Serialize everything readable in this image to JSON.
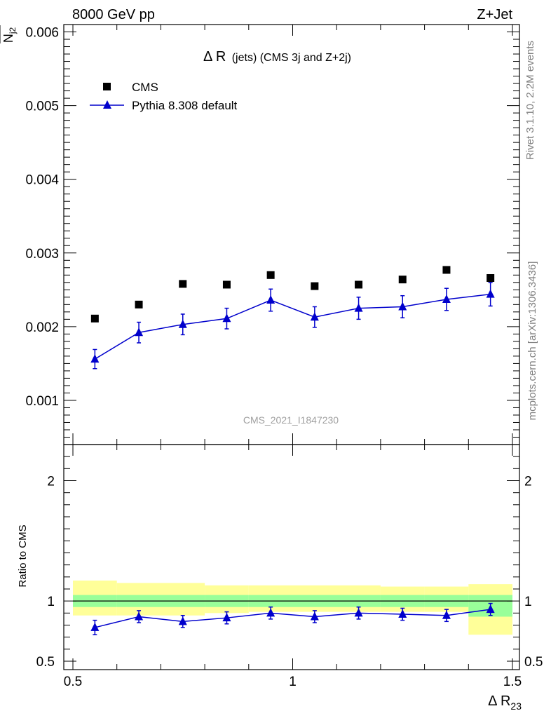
{
  "header": {
    "energy": "8000 GeV pp",
    "process": "Z+Jet",
    "title_main": "Δ R",
    "title_rest": "(jets) (CMS 3j and Z+2j)",
    "watermark": "CMS_2021_I1847230",
    "side_rivet": "Rivet 3.1.10,  2.2M events",
    "side_mcplots": "mcplots.cern.ch [arXiv:1306.3436]"
  },
  "labels": {
    "ylabel_top_num": "N",
    "ylabel_top_num_sub": "j3",
    "ylabel_top_den": "N",
    "ylabel_top_den_sub": "j2",
    "ylabel_ratio": "Ratio to CMS",
    "xlabel": "Δ R",
    "xlabel_sub": "23"
  },
  "legend": {
    "data_label": "CMS",
    "mc_label": "Pythia 8.308 default"
  },
  "colors": {
    "data": "#000000",
    "mc": "#0000cc",
    "band_inner": "#99ff99",
    "band_outer": "#ffff99"
  },
  "chart_data": [
    {
      "type": "scatter",
      "panel": "main",
      "xlim": [
        0.5,
        1.5
      ],
      "ylim": [
        0.0004,
        0.0061
      ],
      "yticks": [
        0.001,
        0.002,
        0.003,
        0.004,
        0.005,
        0.006
      ],
      "ytick_labels": [
        "0.001",
        "0.002",
        "0.003",
        "0.004",
        "0.005",
        "0.006"
      ],
      "x": [
        0.55,
        0.65,
        0.75,
        0.85,
        0.95,
        1.05,
        1.15,
        1.25,
        1.35,
        1.45
      ],
      "series": [
        {
          "name": "CMS",
          "values": [
            0.00211,
            0.0023,
            0.00258,
            0.00257,
            0.0027,
            0.00255,
            0.00257,
            0.00264,
            0.00277,
            0.00266
          ]
        },
        {
          "name": "Pythia 8.308 default",
          "values": [
            0.00156,
            0.00192,
            0.00203,
            0.00211,
            0.00236,
            0.00213,
            0.00225,
            0.00227,
            0.00237,
            0.00244
          ],
          "errors": [
            0.00013,
            0.00014,
            0.00014,
            0.00014,
            0.00015,
            0.00014,
            0.00015,
            0.00015,
            0.00015,
            0.00016
          ]
        }
      ]
    },
    {
      "type": "line",
      "panel": "ratio",
      "xlim": [
        0.5,
        1.5
      ],
      "ylim": [
        0.43,
        2.3
      ],
      "yticks": [
        0.5,
        1,
        2
      ],
      "ytick_labels": [
        "0.5",
        "1",
        "2"
      ],
      "xticks": [
        0.5,
        1,
        1.5
      ],
      "xtick_labels": [
        "0.5",
        "1",
        "1.5"
      ],
      "x": [
        0.55,
        0.65,
        0.75,
        0.85,
        0.95,
        1.05,
        1.15,
        1.25,
        1.35,
        1.45
      ],
      "series": [
        {
          "name": "Pythia 8.308 default",
          "values": [
            0.78,
            0.87,
            0.83,
            0.86,
            0.9,
            0.87,
            0.9,
            0.89,
            0.88,
            0.93
          ],
          "errors": [
            0.06,
            0.05,
            0.05,
            0.05,
            0.05,
            0.05,
            0.05,
            0.05,
            0.05,
            0.05
          ]
        }
      ],
      "bands": [
        {
          "x0": 0.5,
          "x1": 0.6,
          "inner": [
            0.95,
            1.05
          ],
          "outer": [
            0.88,
            1.17
          ]
        },
        {
          "x0": 0.6,
          "x1": 0.8,
          "inner": [
            0.95,
            1.05
          ],
          "outer": [
            0.88,
            1.15
          ]
        },
        {
          "x0": 0.8,
          "x1": 0.9,
          "inner": [
            0.95,
            1.05
          ],
          "outer": [
            0.9,
            1.13
          ]
        },
        {
          "x0": 0.9,
          "x1": 1.2,
          "inner": [
            0.95,
            1.05
          ],
          "outer": [
            0.91,
            1.13
          ]
        },
        {
          "x0": 1.2,
          "x1": 1.3,
          "inner": [
            0.95,
            1.05
          ],
          "outer": [
            0.91,
            1.12
          ]
        },
        {
          "x0": 1.3,
          "x1": 1.4,
          "inner": [
            0.95,
            1.05
          ],
          "outer": [
            0.91,
            1.12
          ]
        },
        {
          "x0": 1.4,
          "x1": 1.5,
          "inner": [
            0.87,
            1.05
          ],
          "outer": [
            0.72,
            1.14
          ]
        }
      ]
    }
  ]
}
